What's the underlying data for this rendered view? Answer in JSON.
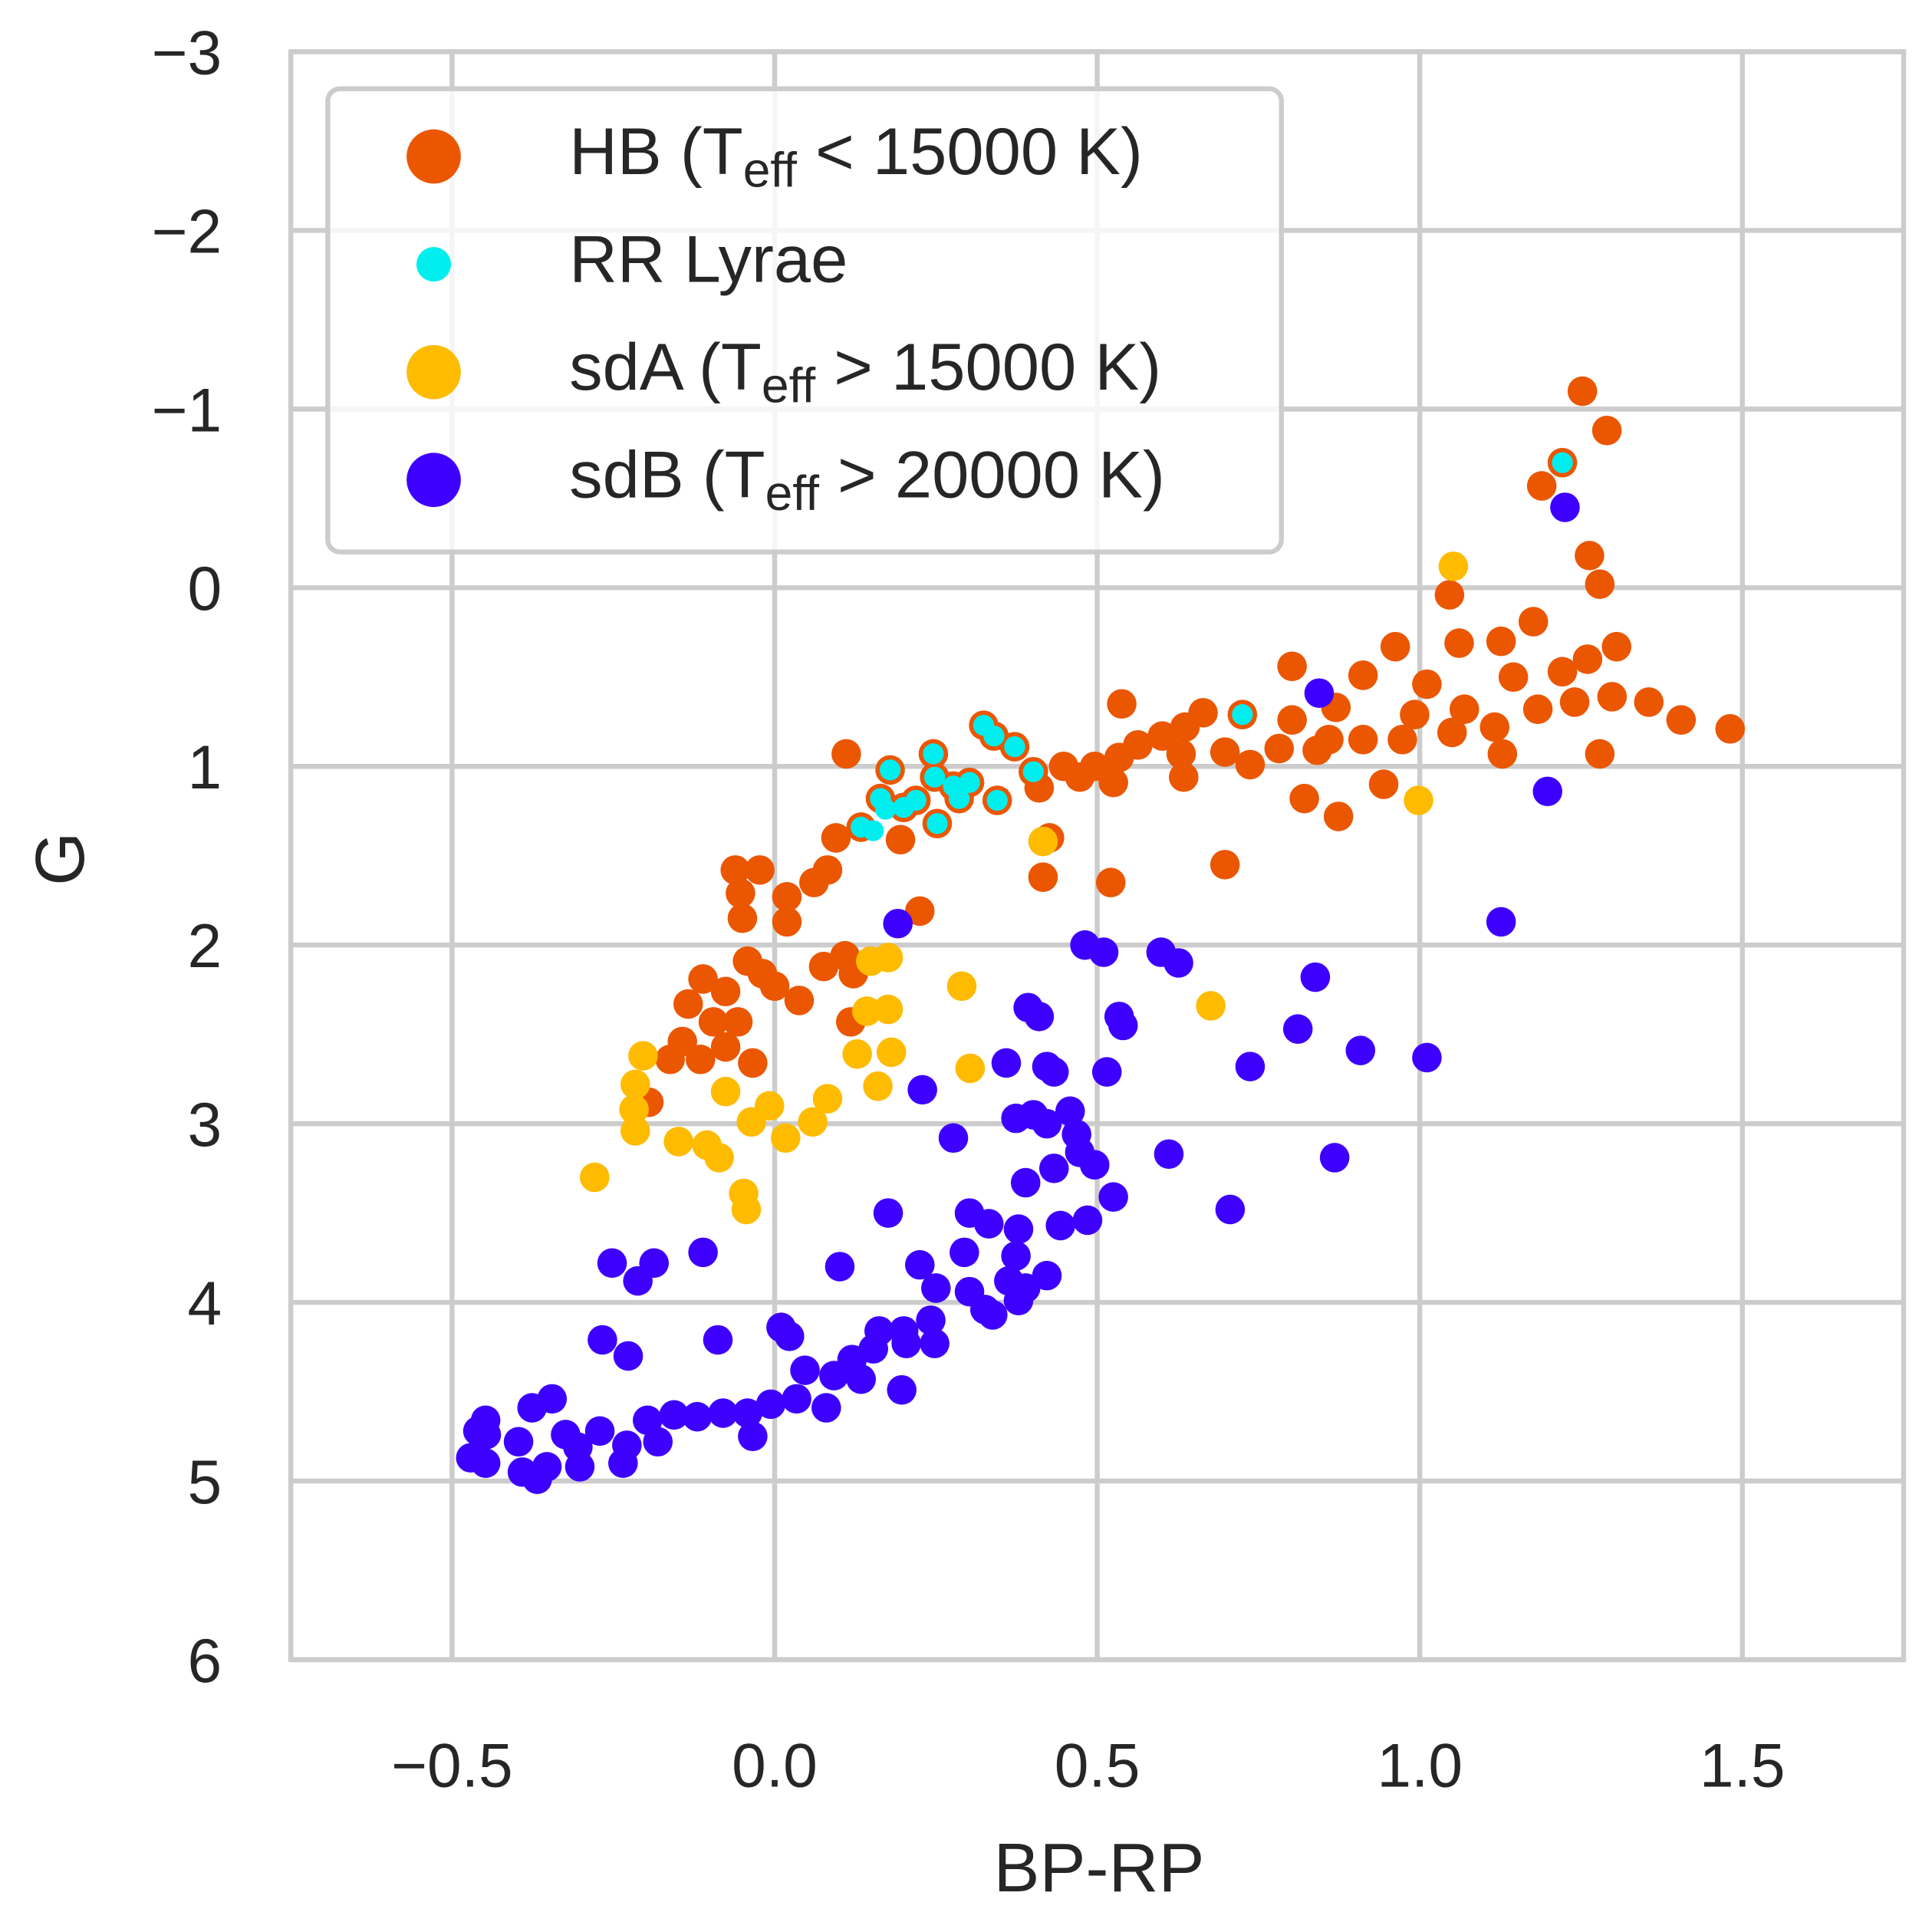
{
  "chart_data": {
    "type": "scatter",
    "xlabel": "BP-RP",
    "ylabel": "G",
    "xlim": [
      -0.75,
      1.75
    ],
    "ylim": [
      -3,
      6
    ],
    "y_inverted": true,
    "grid": true,
    "legend": "upper left",
    "xticks": [
      {
        "value": -0.5,
        "label": "−0.5"
      },
      {
        "value": 0,
        "label": "0.0"
      },
      0.5,
      {
        "value": 1,
        "label": "1.0"
      },
      1.5
    ],
    "yticks": [
      {
        "value": -3,
        "label": "−3"
      },
      {
        "value": -2,
        "label": "−2"
      },
      {
        "value": -1,
        "label": "−1"
      },
      0,
      1,
      2,
      3,
      4,
      5,
      6
    ],
    "series": [
      {
        "name": "HB (Teff < 15000 K)",
        "color": "#eb5600",
        "x": [
          1.252,
          1.29,
          1.221,
          1.189,
          1.263,
          1.279,
          1.046,
          1.176,
          0.962,
          1.305,
          0.912,
          0.802,
          1.061,
          1.126,
          1.011,
          1.145,
          1.221,
          1.26,
          1.069,
          0.992,
          1.116,
          1.183,
          1.24,
          1.298,
          1.355,
          1.405,
          1.481,
          0.973,
          1.05,
          1.128,
          1.279,
          0.912,
          0.859,
          0.87,
          0.802,
          0.782,
          0.841,
          0.698,
          0.737,
          0.664,
          0.636,
          0.601,
          0.538,
          0.563,
          0.534,
          0.496,
          0.525,
          0.473,
          0.448,
          0.634,
          0.63,
          0.944,
          0.821,
          0.874,
          0.698,
          0.521,
          0.416,
          0.426,
          0.41,
          0.111,
          0.095,
          0.195,
          0.225,
          0.082,
          0.061,
          0.019,
          0.019,
          -0.023,
          -0.061,
          -0.053,
          -0.05,
          -0.042,
          -0.019,
          0.0,
          0.038,
          0.109,
          0.076,
          0.122,
          0.118,
          -0.111,
          -0.134,
          -0.076,
          -0.095,
          -0.057,
          -0.143,
          -0.162,
          -0.115,
          -0.034,
          -0.076,
          -0.195,
          0.725,
          0.324,
          0.246,
          0.179,
          0.248,
          0.164,
          0.252,
          0.134,
          0.34,
          0.372,
          0.401,
          0.277,
          0.302,
          0.345,
          0.2,
          0.219,
          0.286
        ],
        "y": [
          -1.1,
          -0.88,
          -0.7,
          -0.57,
          -0.18,
          -0.02,
          0.04,
          0.19,
          0.33,
          0.33,
          0.49,
          0.44,
          0.31,
          0.3,
          0.54,
          0.5,
          0.47,
          0.4,
          0.68,
          0.71,
          0.78,
          0.68,
          0.64,
          0.61,
          0.64,
          0.74,
          0.79,
          0.85,
          0.81,
          0.93,
          0.93,
          0.85,
          0.85,
          0.67,
          0.74,
          0.9,
          0.91,
          0.92,
          0.99,
          0.7,
          0.78,
          0.83,
          0.65,
          0.88,
          0.95,
          1.0,
          1.09,
          1.06,
          1.0,
          1.06,
          0.93,
          1.1,
          1.18,
          1.28,
          1.55,
          1.65,
          1.62,
          1.4,
          1.12,
          0.93,
          1.4,
          1.41,
          1.81,
          1.58,
          1.65,
          1.73,
          1.87,
          1.58,
          1.58,
          1.71,
          1.85,
          2.09,
          2.16,
          2.23,
          2.31,
          2.06,
          2.12,
          2.16,
          2.43,
          2.19,
          2.33,
          2.26,
          2.43,
          2.43,
          2.54,
          2.64,
          2.64,
          2.66,
          2.57,
          2.88,
          0.71,
          0.77,
          0.93,
          1.02,
          1.06,
          1.18,
          1.32,
          1.34,
          0.83,
          0.89,
          1.03,
          1.11,
          1.09,
          1.19,
          1.23,
          1.19,
          1.18
        ]
      },
      {
        "name": "RR Lyrae",
        "color": "#00eeee",
        "x": [
          1.221,
          0.725,
          0.324,
          0.34,
          0.372,
          0.246,
          0.179,
          0.401,
          0.248,
          0.277,
          0.302,
          0.345,
          0.164,
          0.2,
          0.219,
          0.172,
          0.286,
          0.252,
          0.153,
          0.134
        ],
        "y": [
          -0.7,
          0.71,
          0.77,
          0.83,
          0.89,
          0.93,
          1.02,
          1.03,
          1.06,
          1.11,
          1.09,
          1.19,
          1.18,
          1.23,
          1.19,
          1.24,
          1.18,
          1.32,
          1.36,
          1.34
        ]
      },
      {
        "name": "sdA (Teff > 15000 K)",
        "color": "#ffbb00",
        "x": [
          1.052,
          0.998,
          0.676,
          0.416,
          0.29,
          0.303,
          0.176,
          0.149,
          0.143,
          0.176,
          0.128,
          0.181,
          0.16,
          0.082,
          0.059,
          -0.008,
          -0.036,
          0.017,
          -0.076,
          -0.204,
          -0.216,
          -0.218,
          -0.216,
          -0.149,
          -0.105,
          -0.086,
          -0.048,
          -0.044,
          -0.279
        ],
        "y": [
          -0.12,
          1.19,
          2.34,
          1.42,
          2.23,
          2.69,
          2.07,
          2.09,
          2.37,
          2.36,
          2.61,
          2.6,
          2.79,
          2.86,
          2.99,
          2.9,
          2.99,
          3.08,
          2.82,
          2.62,
          2.78,
          2.92,
          3.04,
          3.1,
          3.12,
          3.19,
          3.39,
          3.48,
          3.3
        ]
      },
      {
        "name": "sdB (Teff > 20000 K)",
        "color": "#3d00ff",
        "x": [
          0.844,
          1.198,
          1.126,
          1.225,
          0.191,
          0.481,
          0.51,
          0.599,
          0.626,
          0.838,
          0.811,
          0.393,
          0.41,
          0.534,
          0.54,
          0.908,
          1.011,
          0.359,
          0.422,
          0.433,
          0.515,
          0.737,
          0.229,
          0.374,
          0.401,
          0.422,
          0.458,
          0.468,
          0.473,
          0.496,
          0.433,
          0.277,
          0.611,
          0.868,
          0.389,
          0.525,
          0.706,
          0.176,
          0.302,
          0.332,
          0.378,
          0.443,
          0.485,
          0.294,
          0.374,
          0.422,
          0.389,
          0.363,
          0.302,
          0.326,
          0.378,
          0.338,
          0.25,
          0.225,
          0.101,
          -0.111,
          -0.252,
          -0.187,
          -0.212,
          -0.267,
          -0.227,
          -0.088,
          0.01,
          0.023,
          0.047,
          0.092,
          0.12,
          0.134,
          0.153,
          0.162,
          0.2,
          0.204,
          0.242,
          0.248,
          0.197,
          0.08,
          0.034,
          -0.006,
          -0.042,
          -0.08,
          -0.12,
          -0.156,
          -0.197,
          -0.034,
          -0.181,
          -0.229,
          -0.271,
          -0.305,
          -0.324,
          -0.302,
          -0.235,
          -0.353,
          -0.368,
          -0.391,
          -0.397,
          -0.376,
          -0.345,
          -0.448,
          -0.46,
          -0.447,
          -0.471,
          -0.448
        ],
        "y": [
          0.59,
          1.14,
          1.87,
          -0.45,
          1.88,
          2.0,
          2.04,
          2.04,
          2.1,
          2.18,
          2.47,
          2.35,
          2.4,
          2.4,
          2.45,
          2.59,
          2.63,
          2.66,
          2.68,
          2.71,
          2.71,
          2.68,
          2.81,
          2.97,
          2.95,
          3.0,
          2.93,
          3.06,
          3.16,
          3.23,
          3.25,
          3.08,
          3.17,
          3.19,
          3.33,
          3.41,
          3.48,
          3.5,
          3.5,
          3.56,
          3.59,
          3.57,
          3.54,
          3.72,
          3.74,
          3.85,
          3.92,
          3.88,
          3.94,
          4.04,
          3.99,
          4.07,
          3.92,
          3.79,
          3.8,
          3.72,
          3.78,
          3.78,
          3.88,
          4.21,
          4.3,
          4.21,
          4.14,
          4.19,
          4.38,
          4.41,
          4.32,
          4.43,
          4.26,
          4.16,
          4.16,
          4.23,
          4.1,
          4.23,
          4.49,
          4.59,
          4.54,
          4.57,
          4.62,
          4.62,
          4.64,
          4.63,
          4.66,
          4.75,
          4.78,
          4.8,
          4.72,
          4.81,
          4.74,
          4.92,
          4.9,
          4.92,
          4.99,
          4.95,
          4.78,
          4.59,
          4.54,
          4.66,
          4.72,
          4.74,
          4.87,
          4.9
        ]
      }
    ]
  }
}
